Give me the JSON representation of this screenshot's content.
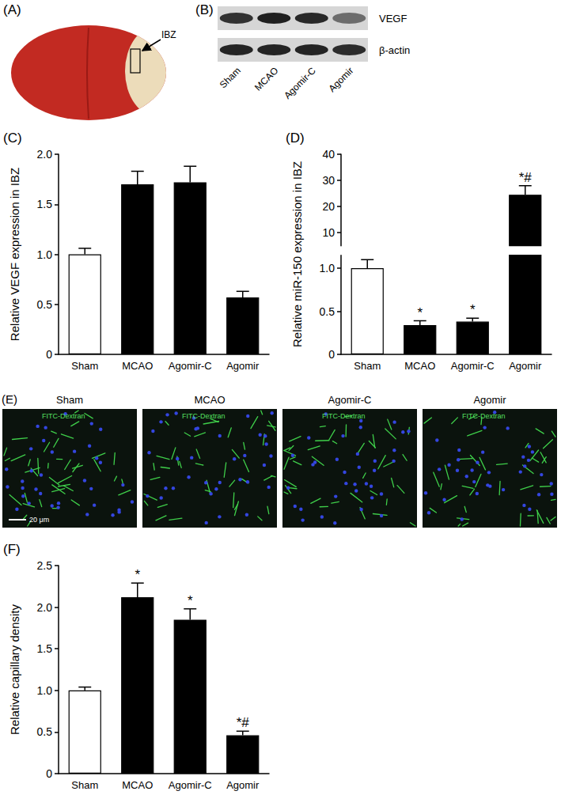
{
  "figure": {
    "A": {
      "label": "(A)",
      "annotation": "IBZ"
    },
    "B": {
      "label": "(B)",
      "bands": [
        "VEGF",
        "β-actin"
      ],
      "lanes": [
        "Sham",
        "MCAO",
        "Agomir-C",
        "Agomir"
      ]
    },
    "E": {
      "label": "(E)",
      "panels": [
        "Sham",
        "MCAO",
        "Agomir-C",
        "Agomir"
      ],
      "stain": "FITC-Dextran",
      "scale_bar": "20 μm"
    }
  },
  "chart_data": [
    {
      "panel": "(C)",
      "type": "bar",
      "y_label": "Relative VEGF expression in IBZ",
      "categories": [
        "Sham",
        "MCAO",
        "Agomir-C",
        "Agomir"
      ],
      "values": [
        1.0,
        1.7,
        1.72,
        0.57
      ],
      "errors": [
        0.06,
        0.13,
        0.16,
        0.06
      ],
      "colors": [
        "#ffffff",
        "#000000",
        "#000000",
        "#000000"
      ],
      "ylim": [
        0,
        2
      ],
      "yticks": [
        0,
        0.5,
        {
          "value": 1,
          "label": "1.0"
        },
        1.5,
        {
          "value": 2,
          "label": "2.0"
        }
      ],
      "grid": false
    },
    {
      "panel": "(D)",
      "type": "bar",
      "y_label": "Relative miR-150 expression in IBZ",
      "categories": [
        "Sham",
        "MCAO",
        "Agomir-C",
        "Agomir"
      ],
      "values": [
        1.0,
        0.34,
        0.38,
        24.5
      ],
      "errors": [
        0.1,
        0.05,
        0.04,
        3.5
      ],
      "annotations": [
        null,
        "*",
        "*",
        "*#"
      ],
      "colors": [
        "#ffffff",
        "#000000",
        "#000000",
        "#000000"
      ],
      "segments": [
        {
          "ylim": [
            0,
            1.15
          ],
          "yticks": [
            0,
            0.5,
            {
              "value": 1,
              "label": "1.0"
            }
          ]
        },
        {
          "ylim": [
            5,
            40
          ],
          "yticks": [
            10,
            20,
            30,
            40
          ]
        }
      ],
      "grid": false
    },
    {
      "panel": "(F)",
      "type": "bar",
      "y_label": "Relative capillary density",
      "categories": [
        "Sham",
        "MCAO",
        "Agomir-C",
        "Agomir"
      ],
      "values": [
        1.0,
        2.12,
        1.85,
        0.46
      ],
      "errors": [
        0.04,
        0.17,
        0.13,
        0.05
      ],
      "annotations": [
        null,
        "*",
        "*",
        "*#"
      ],
      "colors": [
        "#ffffff",
        "#000000",
        "#000000",
        "#000000"
      ],
      "ylim": [
        0,
        2.5
      ],
      "yticks": [
        0,
        0.5,
        {
          "value": 1,
          "label": "1.0"
        },
        1.5,
        {
          "value": 2,
          "label": "2.0"
        },
        2.5
      ],
      "grid": false
    }
  ]
}
